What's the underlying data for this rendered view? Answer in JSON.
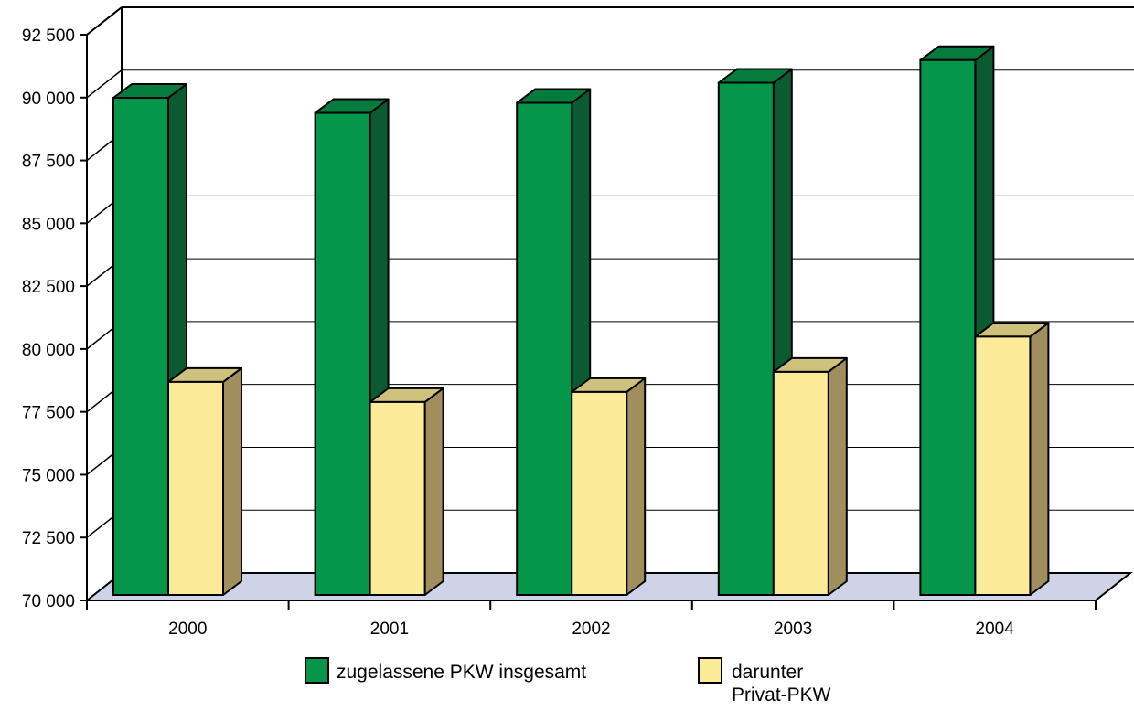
{
  "chart_data": {
    "type": "bar",
    "title": "",
    "xlabel": "",
    "ylabel": "",
    "categories": [
      "2000",
      "2001",
      "2002",
      "2003",
      "2004"
    ],
    "ylim": [
      70000,
      92500
    ],
    "yticks": [
      "70 000",
      "72 500",
      "75 000",
      "77 500",
      "80 000",
      "82 500",
      "85 000",
      "87 500",
      "90 000",
      "92 500"
    ],
    "ytick_values": [
      70000,
      72500,
      75000,
      77500,
      80000,
      82500,
      85000,
      87500,
      90000,
      92500
    ],
    "grid": true,
    "legend_position": "bottom",
    "series": [
      {
        "name": "zugelassene PKW insgesamt",
        "values": [
          89500,
          88900,
          89300,
          90100,
          91000
        ],
        "color": "#06964a",
        "side_color": "#0b5a32"
      },
      {
        "name_lines": [
          "darunter",
          "Privat-PKW"
        ],
        "values": [
          78200,
          77400,
          77800,
          78600,
          80000
        ],
        "color": "#fbeb99",
        "side_color": "#a08f5c"
      }
    ]
  }
}
